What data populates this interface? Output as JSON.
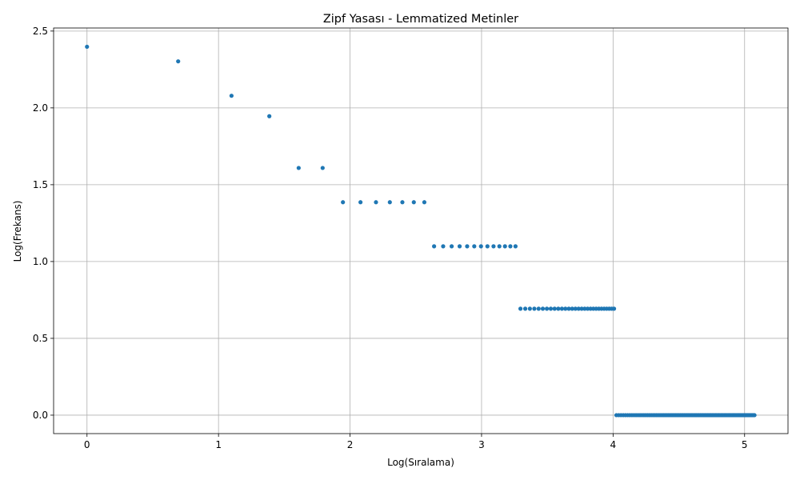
{
  "chart_data": {
    "type": "scatter",
    "title": "Zipf Yasası - Lemmatized Metinler",
    "xlabel": "Log(Sıralama)",
    "ylabel": "Log(Frekans)",
    "xlim": [
      -0.254,
      5.33
    ],
    "ylim": [
      -0.12,
      2.52
    ],
    "xticks": [
      0,
      1,
      2,
      3,
      4,
      5
    ],
    "xtick_labels": [
      "0",
      "1",
      "2",
      "3",
      "4",
      "5"
    ],
    "yticks": [
      0.0,
      0.5,
      1.0,
      1.5,
      2.0,
      2.5
    ],
    "ytick_labels": [
      "0.0",
      "0.5",
      "1.0",
      "1.5",
      "2.0",
      "2.5"
    ],
    "grid": true,
    "legend": "none",
    "marker_color": "#1f77b4",
    "note_ranks": "x = ln(rank) for ranks 1..160; y = ln(frequency)",
    "groups": [
      {
        "rank_from": 1,
        "rank_to": 1,
        "y": 2.398
      },
      {
        "rank_from": 2,
        "rank_to": 2,
        "y": 2.303
      },
      {
        "rank_from": 3,
        "rank_to": 3,
        "y": 2.079
      },
      {
        "rank_from": 4,
        "rank_to": 4,
        "y": 1.946
      },
      {
        "rank_from": 5,
        "rank_to": 6,
        "y": 1.609
      },
      {
        "rank_from": 7,
        "rank_to": 13,
        "y": 1.386
      },
      {
        "rank_from": 14,
        "rank_to": 26,
        "y": 1.099
      },
      {
        "rank_from": 27,
        "rank_to": 55,
        "y": 0.693
      },
      {
        "rank_from": 56,
        "rank_to": 160,
        "y": 0.0
      }
    ]
  }
}
